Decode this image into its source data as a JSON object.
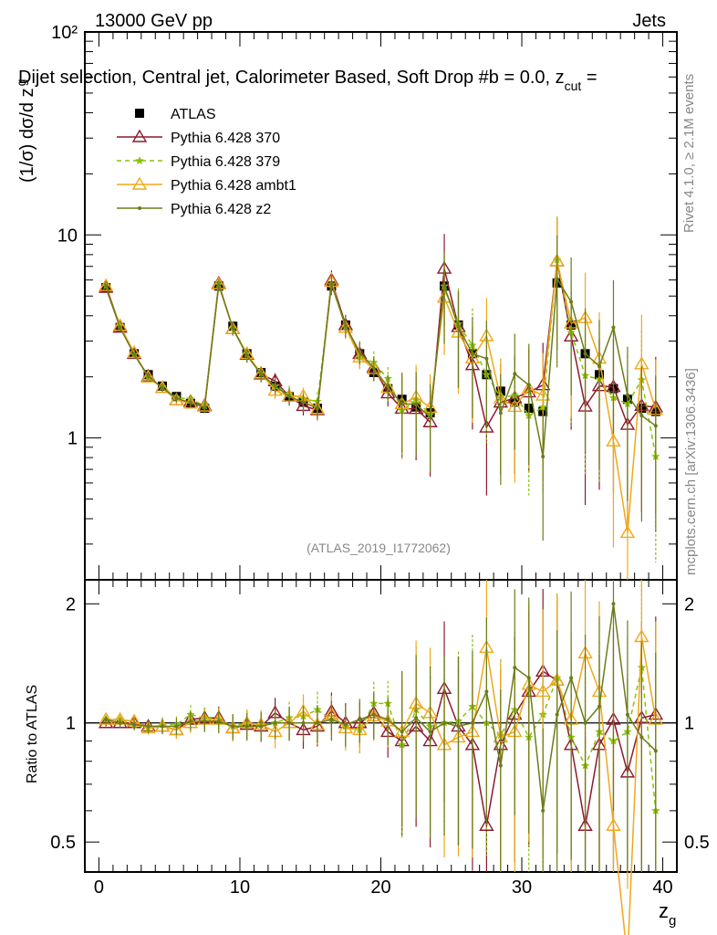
{
  "header": {
    "left": "13000 GeV pp",
    "right": "Jets",
    "subtitle": "Dijet selection, Central jet, Calorimeter Based, Soft Drop #b = 0.0, z",
    "subtitle_sub": "cut",
    "subtitle_tail": " ="
  },
  "side_labels": {
    "rivet": "Rivet 4.1.0, ≥ 2.1M events",
    "mcplots": "mcplots.cern.ch [arXiv:1306.3436]"
  },
  "watermark": "(ATLAS_2019_I1772062)",
  "colors": {
    "atlas": "#000000",
    "p370": "#8b1a2e",
    "p379": "#88c20a",
    "ambt1": "#f0a81a",
    "z2": "#6b7d1a"
  },
  "chart_data": {
    "type": "scatter",
    "title": "Dijet selection, Central jet, Calorimeter Based, Soft Drop #b = 0.0, z_cut =",
    "xlabel": "z_g",
    "ylabel": "(1/σ) dσ/d z_g",
    "ratio_ylabel": "Ratio to ATLAS",
    "xlim": [
      -1,
      41
    ],
    "ylim": [
      0.2,
      100
    ],
    "ratio_ylim": [
      0.42,
      2.3
    ],
    "yscale": "log",
    "x_ticks": [
      "0",
      "10",
      "20",
      "30",
      "40"
    ],
    "y_ticks": [
      "1",
      "10",
      "10²"
    ],
    "ratio_ticks": [
      "0.5",
      "1",
      "2"
    ],
    "legend_position": "top-left",
    "x": [
      0.5,
      1.5,
      2.5,
      3.5,
      4.5,
      5.5,
      6.5,
      7.5,
      8.5,
      9.5,
      10.5,
      11.5,
      12.5,
      13.5,
      14.5,
      15.5,
      16.5,
      17.5,
      18.5,
      19.5,
      20.5,
      21.5,
      22.5,
      23.5,
      24.5,
      25.5,
      26.5,
      27.5,
      28.5,
      29.5,
      30.5,
      31.5,
      32.5,
      33.5,
      34.5,
      35.5,
      36.5,
      37.5,
      38.5,
      39.5
    ],
    "series": [
      {
        "name": "ATLAS",
        "color_key": "atlas",
        "marker": "square",
        "values": [
          5.5,
          3.5,
          2.6,
          2.05,
          1.8,
          1.6,
          1.48,
          1.4,
          5.6,
          3.55,
          2.6,
          2.1,
          1.8,
          1.6,
          1.5,
          1.4,
          5.6,
          3.6,
          2.6,
          2.1,
          1.75,
          1.55,
          1.42,
          1.33,
          5.6,
          3.6,
          2.6,
          2.05,
          1.7,
          1.5,
          1.4,
          1.35,
          5.8,
          3.6,
          2.6,
          2.05,
          1.75,
          1.55,
          1.4,
          1.35
        ]
      },
      {
        "name": "Pythia 6.428 370",
        "color_key": "p370",
        "marker": "triangle",
        "ratio": [
          1.0,
          1.0,
          1.0,
          0.98,
          0.98,
          0.96,
          1.02,
          1.03,
          1.03,
          0.97,
          0.99,
          0.98,
          1.06,
          1.0,
          0.96,
          0.98,
          1.07,
          1.0,
          1.0,
          1.06,
          0.95,
          0.9,
          0.98,
          0.9,
          1.22,
          0.98,
          0.88,
          0.55,
          0.88,
          1.05,
          1.2,
          1.35,
          1.28,
          0.88,
          0.55,
          0.88,
          1.02,
          0.75,
          1.03,
          1.05
        ]
      },
      {
        "name": "Pythia 6.428 379",
        "color_key": "p379",
        "marker": "star",
        "ratio": [
          1.02,
          1.02,
          0.99,
          0.97,
          0.99,
          0.99,
          1.05,
          1.03,
          1.02,
          0.98,
          1.0,
          0.99,
          1.0,
          1.03,
          1.04,
          1.08,
          1.02,
          0.98,
          0.96,
          1.12,
          1.12,
          0.88,
          1.08,
          0.98,
          1.0,
          1.01,
          1.1,
          1.0,
          0.93,
          1.08,
          0.92,
          1.05,
          1.3,
          0.92,
          0.78,
          0.95,
          0.9,
          0.95,
          1.38,
          0.6
        ]
      },
      {
        "name": "Pythia 6.428 ambt1",
        "color_key": "ambt1",
        "marker": "triangle",
        "ratio": [
          1.02,
          1.02,
          1.01,
          0.97,
          0.98,
          0.96,
          1.0,
          1.02,
          1.02,
          0.97,
          1.0,
          0.99,
          0.95,
          1.0,
          1.07,
          0.99,
          1.05,
          0.97,
          0.96,
          1.04,
          1.01,
          0.95,
          1.12,
          1.06,
          0.88,
          0.92,
          0.95,
          1.55,
          0.92,
          0.95,
          1.25,
          1.2,
          1.28,
          1.02,
          1.5,
          1.2,
          0.55,
          0.22,
          1.65,
          1.02
        ]
      },
      {
        "name": "Pythia 6.428 z2",
        "color_key": "z2",
        "marker": "dot",
        "ratio": [
          1.02,
          1.0,
          0.99,
          0.98,
          0.98,
          0.98,
          1.01,
          1.01,
          1.01,
          0.98,
          0.98,
          0.98,
          1.0,
          1.0,
          1.0,
          1.0,
          1.02,
          0.99,
          1.02,
          1.05,
          1.02,
          0.95,
          1.03,
          0.95,
          1.0,
          0.98,
          1.0,
          1.2,
          0.78,
          1.38,
          1.3,
          0.6,
          1.05,
          1.3,
          1.0,
          1.1,
          2.0,
          1.05,
          0.92,
          0.85
        ]
      }
    ]
  }
}
